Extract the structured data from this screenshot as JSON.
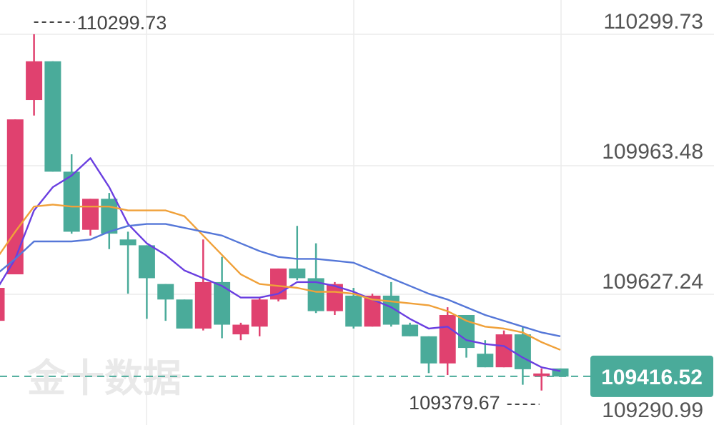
{
  "watermark": "金十数据",
  "colors": {
    "up": "#e0416f",
    "down": "#4aab9a",
    "ma_purple": "#6a3fe0",
    "ma_orange": "#f0a13a",
    "ma_blue": "#5577d8",
    "grid": "#ececec",
    "current_bg": "#4aab9a"
  },
  "chart_data": {
    "type": "candlestick",
    "y_axis_labels": [
      "110299.73",
      "109963.48",
      "109627.24",
      "109290.99"
    ],
    "ylim": [
      109290.99,
      110299.73
    ],
    "high_annotation": "110299.73",
    "low_annotation": "109379.67",
    "current_price": "109416.52",
    "candles": [
      {
        "o": 109560,
        "h": 109680,
        "c": 109645,
        "l": 109540
      },
      {
        "o": 109680,
        "h": 110080,
        "c": 110080,
        "l": 109680
      },
      {
        "o": 110130,
        "h": 110300,
        "c": 110230,
        "l": 110090
      },
      {
        "o": 110230,
        "h": 110230,
        "c": 109945,
        "l": 109945
      },
      {
        "o": 109945,
        "h": 109990,
        "c": 109790,
        "l": 109785
      },
      {
        "o": 109795,
        "h": 109875,
        "c": 109875,
        "l": 109780
      },
      {
        "o": 109875,
        "h": 109890,
        "c": 109785,
        "l": 109745
      },
      {
        "o": 109770,
        "h": 109790,
        "c": 109755,
        "l": 109630
      },
      {
        "o": 109755,
        "h": 109755,
        "c": 109670,
        "l": 109565
      },
      {
        "o": 109655,
        "h": 109655,
        "c": 109615,
        "l": 109560
      },
      {
        "o": 109615,
        "h": 109615,
        "c": 109540,
        "l": 109540
      },
      {
        "o": 109540,
        "h": 109770,
        "c": 109660,
        "l": 109535
      },
      {
        "o": 109660,
        "h": 109725,
        "c": 109550,
        "l": 109515
      },
      {
        "o": 109525,
        "h": 109555,
        "c": 109550,
        "l": 109510
      },
      {
        "o": 109545,
        "h": 109620,
        "c": 109615,
        "l": 109520
      },
      {
        "o": 109615,
        "h": 109695,
        "c": 109695,
        "l": 109610
      },
      {
        "o": 109695,
        "h": 109805,
        "c": 109670,
        "l": 109665
      },
      {
        "o": 109670,
        "h": 109760,
        "c": 109585,
        "l": 109580
      },
      {
        "o": 109585,
        "h": 109660,
        "c": 109655,
        "l": 109575
      },
      {
        "o": 109625,
        "h": 109645,
        "c": 109545,
        "l": 109540
      },
      {
        "o": 109545,
        "h": 109630,
        "c": 109625,
        "l": 109545
      },
      {
        "o": 109625,
        "h": 109660,
        "c": 109550,
        "l": 109545
      },
      {
        "o": 109550,
        "h": 109555,
        "c": 109520,
        "l": 109520
      },
      {
        "o": 109520,
        "h": 109520,
        "c": 109450,
        "l": 109425
      },
      {
        "o": 109450,
        "h": 109595,
        "c": 109575,
        "l": 109420
      },
      {
        "o": 109575,
        "h": 109575,
        "c": 109490,
        "l": 109465
      },
      {
        "o": 109475,
        "h": 109510,
        "c": 109440,
        "l": 109440
      },
      {
        "o": 109440,
        "h": 109535,
        "c": 109525,
        "l": 109440
      },
      {
        "o": 109525,
        "h": 109545,
        "c": 109435,
        "l": 109395
      },
      {
        "o": 109417,
        "h": 109437,
        "c": 109424,
        "l": 109380
      },
      {
        "o": 109437,
        "h": 109437,
        "c": 109416,
        "l": 109416
      }
    ],
    "ma_series": [
      {
        "color": "#6a3fe0",
        "values": [
          109640,
          109720,
          109845,
          109905,
          109935,
          109980,
          109905,
          109810,
          109760,
          109730,
          109690,
          109670,
          109650,
          109620,
          109620,
          109630,
          109660,
          109660,
          109650,
          109635,
          109615,
          109595,
          109565,
          109540,
          109545,
          109510,
          109500,
          109495,
          109465,
          109440,
          109430
        ]
      },
      {
        "color": "#f0a13a",
        "values": [
          109720,
          109790,
          109855,
          109860,
          109855,
          109855,
          109855,
          109845,
          109845,
          109845,
          109830,
          109780,
          109730,
          109680,
          109655,
          109650,
          109645,
          109635,
          109635,
          109630,
          109615,
          109610,
          109605,
          109600,
          109585,
          109560,
          109545,
          109540,
          109530,
          109505,
          109485
        ]
      },
      {
        "color": "#5577d8",
        "values": [
          109680,
          109720,
          109765,
          109765,
          109765,
          109770,
          109790,
          109805,
          109810,
          109810,
          109800,
          109790,
          109780,
          109760,
          109740,
          109725,
          109720,
          109720,
          109715,
          109710,
          109690,
          109670,
          109650,
          109630,
          109615,
          109595,
          109575,
          109560,
          109545,
          109530,
          109520
        ]
      }
    ]
  }
}
